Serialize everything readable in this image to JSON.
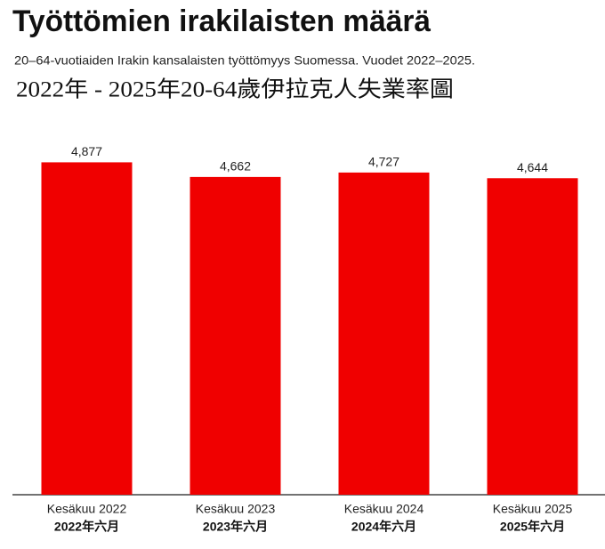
{
  "chart_data": {
    "type": "bar",
    "title": "Työttömien irakilaisten määrä",
    "subtitle": "20–64-vuotiaiden Irakin kansalaisten työttömyys Suomessa. Vuodet 2022–2025.",
    "overlay_title": "2022年 - 2025年20-64歲伊拉克人失業率圖",
    "categories": [
      "Kesäkuu 2022",
      "Kesäkuu 2023",
      "Kesäkuu 2024",
      "Kesäkuu 2025"
    ],
    "categories_zh": [
      "2022年六月",
      "2023年六月",
      "2024年六月",
      "2025年六月"
    ],
    "values": [
      4877,
      4662,
      4727,
      4644
    ],
    "value_labels": [
      "4,877",
      "4,662",
      "4,727",
      "4,644"
    ],
    "color": "#f00000",
    "ylim": [
      0,
      5000
    ]
  }
}
